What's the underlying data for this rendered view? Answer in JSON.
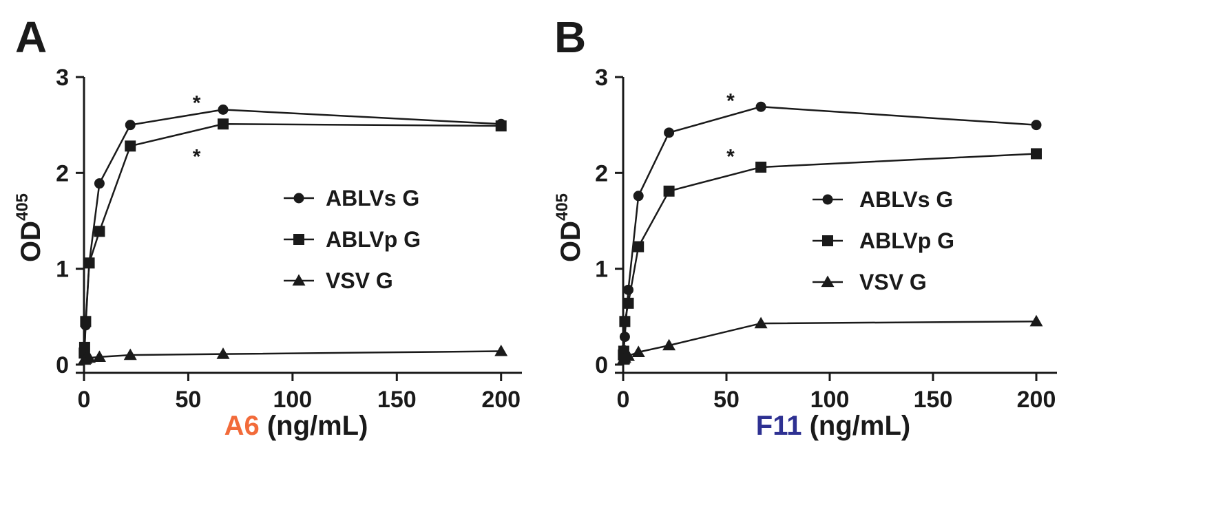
{
  "chart_data": [
    {
      "type": "line",
      "panel_label": "A",
      "xlabel_antibody": "A6",
      "xlabel_unit": "(ng/mL)",
      "xlabel_color": "#f26b3a",
      "ylabel_main": "OD",
      "ylabel_sup": "405",
      "xlim": [
        0,
        210
      ],
      "ylim": [
        0,
        3
      ],
      "xticks": [
        0,
        50,
        100,
        150,
        200
      ],
      "xtick_labels": [
        "0",
        "50",
        "100",
        "150",
        "200"
      ],
      "yticks": [
        0,
        1,
        2,
        3
      ],
      "ytick_labels": [
        "0",
        "1",
        "2",
        "3"
      ],
      "x": [
        0.1,
        0.3,
        0.8,
        2.5,
        7.4,
        22.2,
        66.7,
        200
      ],
      "series": [
        {
          "name": "ABLVs G",
          "marker": "circle",
          "values": [
            0.12,
            0.18,
            0.41,
            1.06,
            1.89,
            2.5,
            2.66,
            2.51
          ]
        },
        {
          "name": "ABLVp G",
          "marker": "square",
          "values": [
            0.12,
            0.18,
            0.45,
            1.06,
            1.39,
            2.28,
            2.51,
            2.49
          ]
        },
        {
          "name": "VSV G",
          "marker": "triangle",
          "values": [
            0.05,
            0.05,
            0.06,
            0.07,
            0.08,
            0.1,
            0.11,
            0.14
          ]
        }
      ],
      "annotations": [
        {
          "text": "*",
          "x": 54,
          "y": 2.76
        },
        {
          "text": "*",
          "x": 54,
          "y": 2.2
        }
      ],
      "legend": {
        "position": "center-right",
        "entries": [
          "ABLVs G",
          "ABLVp G",
          "VSV G"
        ]
      }
    },
    {
      "type": "line",
      "panel_label": "B",
      "xlabel_antibody": "F11",
      "xlabel_unit": "(ng/mL)",
      "xlabel_color": "#2e3192",
      "ylabel_main": "OD",
      "ylabel_sup": "405",
      "xlim": [
        0,
        210
      ],
      "ylim": [
        0,
        3
      ],
      "xticks": [
        0,
        50,
        100,
        150,
        200
      ],
      "xtick_labels": [
        "0",
        "50",
        "100",
        "150",
        "200"
      ],
      "yticks": [
        0,
        1,
        2,
        3
      ],
      "ytick_labels": [
        "0",
        "1",
        "2",
        "3"
      ],
      "x": [
        0.1,
        0.3,
        0.8,
        2.5,
        7.4,
        22.2,
        66.7,
        200
      ],
      "series": [
        {
          "name": "ABLVs G",
          "marker": "circle",
          "values": [
            0.1,
            0.15,
            0.29,
            0.78,
            1.76,
            2.42,
            2.69,
            2.5
          ]
        },
        {
          "name": "ABLVp G",
          "marker": "square",
          "values": [
            0.1,
            0.14,
            0.45,
            0.64,
            1.23,
            1.81,
            2.06,
            2.2
          ]
        },
        {
          "name": "VSV G",
          "marker": "triangle",
          "values": [
            0.05,
            0.06,
            0.07,
            0.09,
            0.13,
            0.2,
            0.43,
            0.45
          ]
        }
      ],
      "annotations": [
        {
          "text": "*",
          "x": 52,
          "y": 2.78
        },
        {
          "text": "*",
          "x": 52,
          "y": 2.2
        }
      ],
      "legend": {
        "position": "center-right",
        "entries": [
          "ABLVs G",
          "ABLVp G",
          "VSV G"
        ]
      }
    }
  ]
}
